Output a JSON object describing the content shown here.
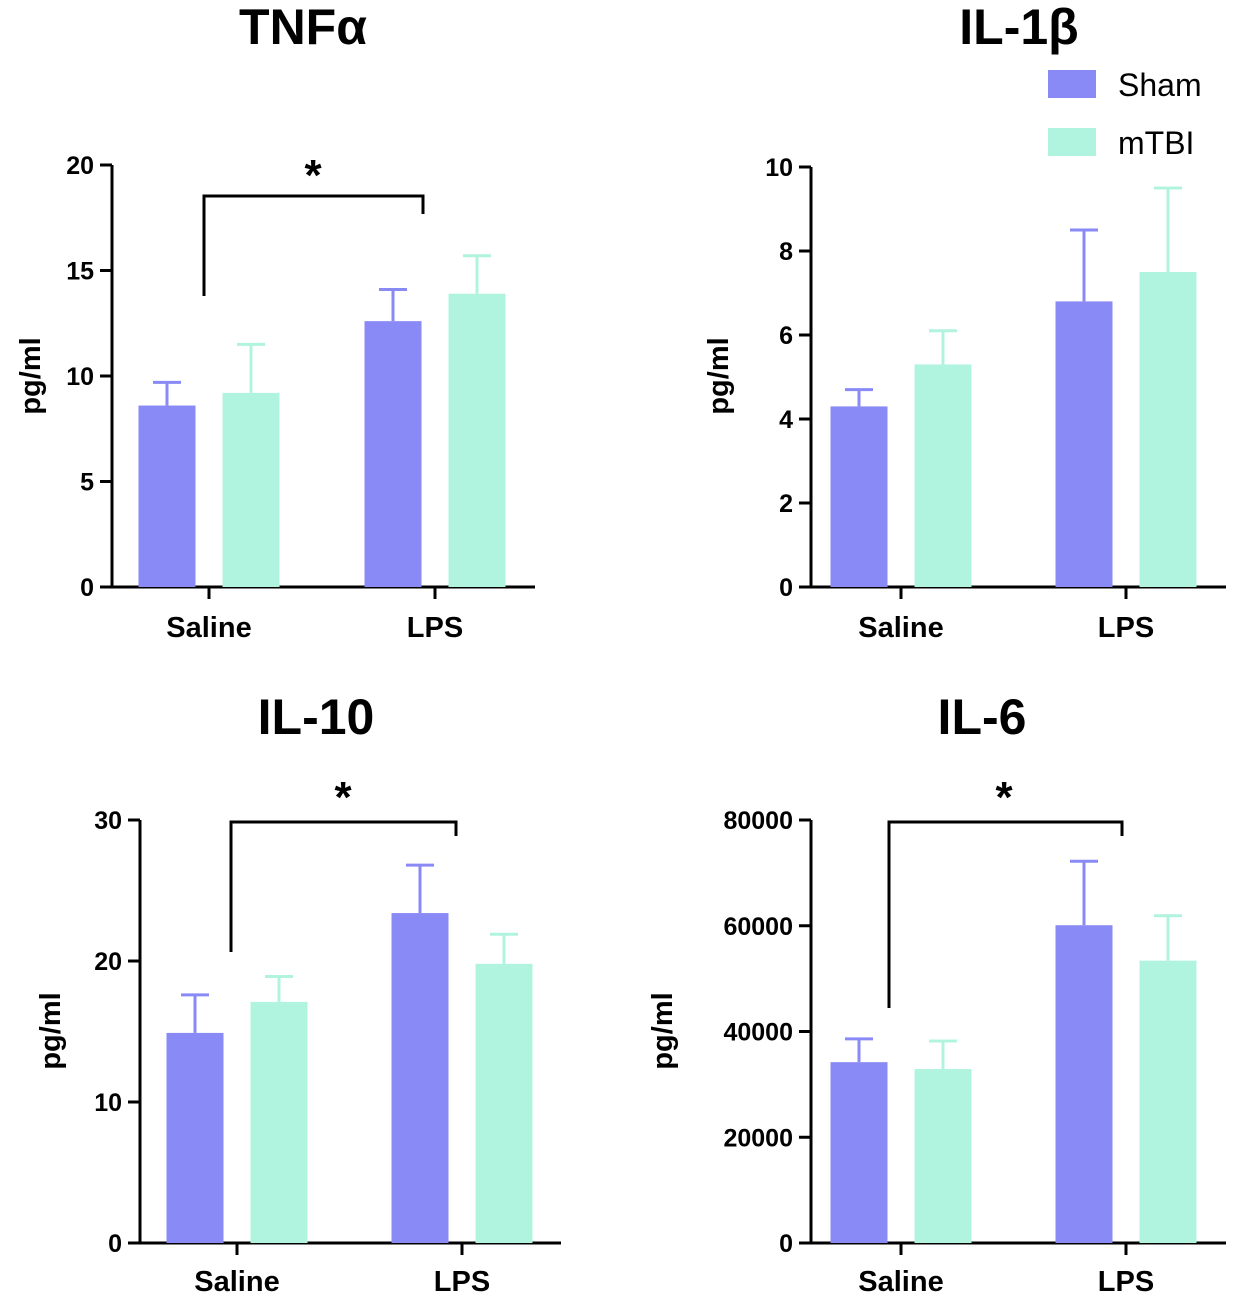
{
  "colors": {
    "sham": "#8a8af7",
    "mtbi": "#b0f4df",
    "axis": "#000000"
  },
  "legend": {
    "items": [
      {
        "label": "Sham",
        "color": "#8a8af7"
      },
      {
        "label": "mTBI",
        "color": "#b0f4df"
      }
    ]
  },
  "chart_data": [
    {
      "type": "bar",
      "title": "TNFα",
      "ylabel": "pg/ml",
      "xlabel": "",
      "categories": [
        "Saline",
        "LPS"
      ],
      "ylim": [
        0,
        20
      ],
      "yticks": [
        0,
        5,
        10,
        15,
        20
      ],
      "series": [
        {
          "name": "Sham",
          "values": [
            8.6,
            12.6
          ],
          "errors": [
            1.1,
            1.5
          ]
        },
        {
          "name": "mTBI",
          "values": [
            9.2,
            13.9
          ],
          "errors": [
            2.3,
            1.8
          ]
        }
      ],
      "significance": [
        {
          "between": [
            "Saline",
            "LPS"
          ],
          "label": "*"
        }
      ]
    },
    {
      "type": "bar",
      "title": "IL-1β",
      "ylabel": "pg/ml",
      "xlabel": "",
      "categories": [
        "Saline",
        "LPS"
      ],
      "ylim": [
        0,
        10
      ],
      "yticks": [
        0,
        2,
        4,
        6,
        8,
        10
      ],
      "series": [
        {
          "name": "Sham",
          "values": [
            4.3,
            6.8
          ],
          "errors": [
            0.4,
            1.7
          ]
        },
        {
          "name": "mTBI",
          "values": [
            5.3,
            7.5
          ],
          "errors": [
            0.8,
            2.0
          ]
        }
      ],
      "significance": []
    },
    {
      "type": "bar",
      "title": "IL-10",
      "ylabel": "pg/ml",
      "xlabel": "",
      "categories": [
        "Saline",
        "LPS"
      ],
      "ylim": [
        0,
        30
      ],
      "yticks": [
        0,
        10,
        20,
        30
      ],
      "series": [
        {
          "name": "Sham",
          "values": [
            14.9,
            23.4
          ],
          "errors": [
            2.7,
            3.4
          ]
        },
        {
          "name": "mTBI",
          "values": [
            17.1,
            19.8
          ],
          "errors": [
            1.8,
            2.1
          ]
        }
      ],
      "significance": [
        {
          "between": [
            "Saline",
            "LPS"
          ],
          "label": "*"
        }
      ]
    },
    {
      "type": "bar",
      "title": "IL-6",
      "ylabel": "pg/ml",
      "xlabel": "",
      "categories": [
        "Saline",
        "LPS"
      ],
      "ylim": [
        0,
        80000
      ],
      "yticks": [
        0,
        20000,
        40000,
        60000,
        80000
      ],
      "series": [
        {
          "name": "Sham",
          "values": [
            34200,
            60100
          ],
          "errors": [
            4400,
            12100
          ]
        },
        {
          "name": "mTBI",
          "values": [
            32900,
            53400
          ],
          "errors": [
            5300,
            8500
          ]
        }
      ],
      "significance": [
        {
          "between": [
            "Saline",
            "LPS"
          ],
          "label": "*"
        }
      ]
    }
  ]
}
